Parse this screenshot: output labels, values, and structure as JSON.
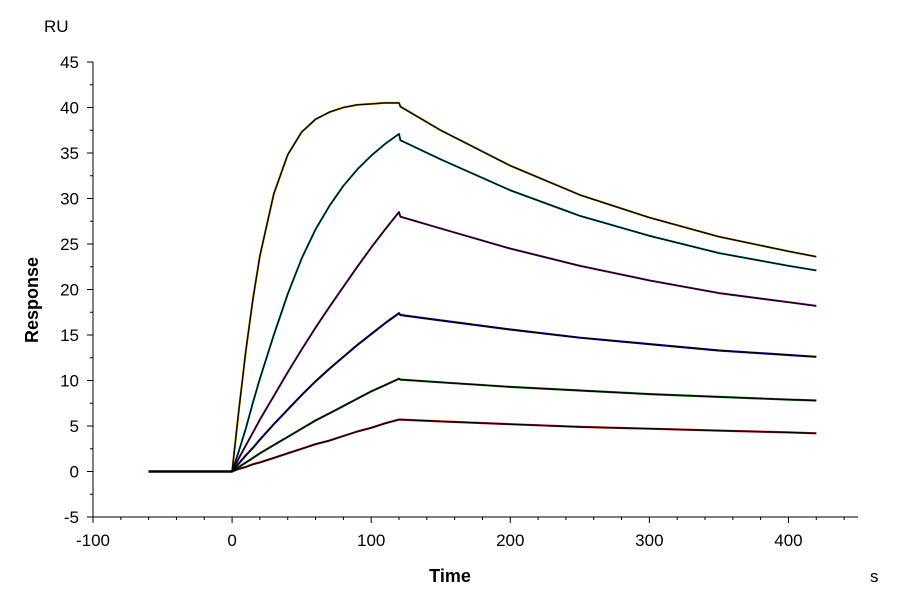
{
  "chart_data": {
    "type": "line",
    "title": "",
    "xlabel": "Time",
    "ylabel": "Response",
    "x_unit": "s",
    "y_unit": "RU",
    "xlim": [
      -100,
      450
    ],
    "ylim": [
      -5,
      45
    ],
    "x_ticks": [
      -100,
      0,
      100,
      200,
      300,
      400
    ],
    "y_ticks": [
      -5,
      0,
      5,
      10,
      15,
      20,
      25,
      30,
      35,
      40,
      45
    ],
    "grid": false,
    "legend": "none",
    "colors": {
      "fit": "#000000",
      "series": [
        "#d4a017",
        "#1ec8d4",
        "#cc33cc",
        "#1a1acc",
        "#1a7a1a",
        "#cc2222"
      ]
    },
    "x": [
      -60,
      -40,
      -20,
      0,
      5,
      10,
      15,
      20,
      30,
      40,
      50,
      60,
      70,
      80,
      90,
      100,
      110,
      120,
      121,
      150,
      200,
      250,
      300,
      350,
      400,
      420
    ],
    "series": [
      {
        "values": [
          0,
          0,
          0,
          0,
          6.9,
          13.4,
          19.0,
          23.7,
          30.5,
          34.8,
          37.3,
          38.7,
          39.5,
          40.0,
          40.3,
          40.4,
          40.5,
          40.5,
          40.1,
          37.5,
          33.6,
          30.4,
          27.9,
          25.8,
          24.2,
          23.6
        ]
      },
      {
        "values": [
          0,
          0,
          0,
          0,
          2.3,
          4.8,
          7.6,
          10.2,
          15.0,
          19.5,
          23.4,
          26.6,
          29.2,
          31.4,
          33.2,
          34.7,
          36.0,
          37.1,
          36.4,
          34.3,
          30.9,
          28.1,
          25.9,
          24.0,
          22.6,
          22.1
        ]
      },
      {
        "values": [
          0,
          0,
          0,
          0,
          1.5,
          2.9,
          4.3,
          5.7,
          8.3,
          10.9,
          13.4,
          15.8,
          18.1,
          20.3,
          22.5,
          24.6,
          26.6,
          28.5,
          28.0,
          26.7,
          24.5,
          22.6,
          21.0,
          19.6,
          18.6,
          18.2
        ]
      },
      {
        "values": [
          0,
          0,
          0,
          0,
          0.9,
          1.8,
          2.6,
          3.5,
          5.2,
          6.8,
          8.4,
          9.9,
          11.3,
          12.6,
          13.9,
          15.1,
          16.3,
          17.4,
          17.2,
          16.6,
          15.6,
          14.7,
          14.0,
          13.3,
          12.8,
          12.6
        ]
      },
      {
        "values": [
          0,
          0,
          0,
          0,
          0.5,
          1.0,
          1.5,
          2.0,
          2.9,
          3.8,
          4.7,
          5.6,
          6.4,
          7.2,
          8.0,
          8.8,
          9.5,
          10.2,
          10.1,
          9.8,
          9.3,
          8.9,
          8.5,
          8.2,
          7.9,
          7.8
        ]
      },
      {
        "values": [
          0,
          0,
          0,
          0,
          0.3,
          0.5,
          0.8,
          1.0,
          1.5,
          2.0,
          2.5,
          3.0,
          3.4,
          3.9,
          4.4,
          4.8,
          5.3,
          5.7,
          5.7,
          5.5,
          5.2,
          4.9,
          4.7,
          4.5,
          4.3,
          4.2
        ]
      }
    ]
  }
}
